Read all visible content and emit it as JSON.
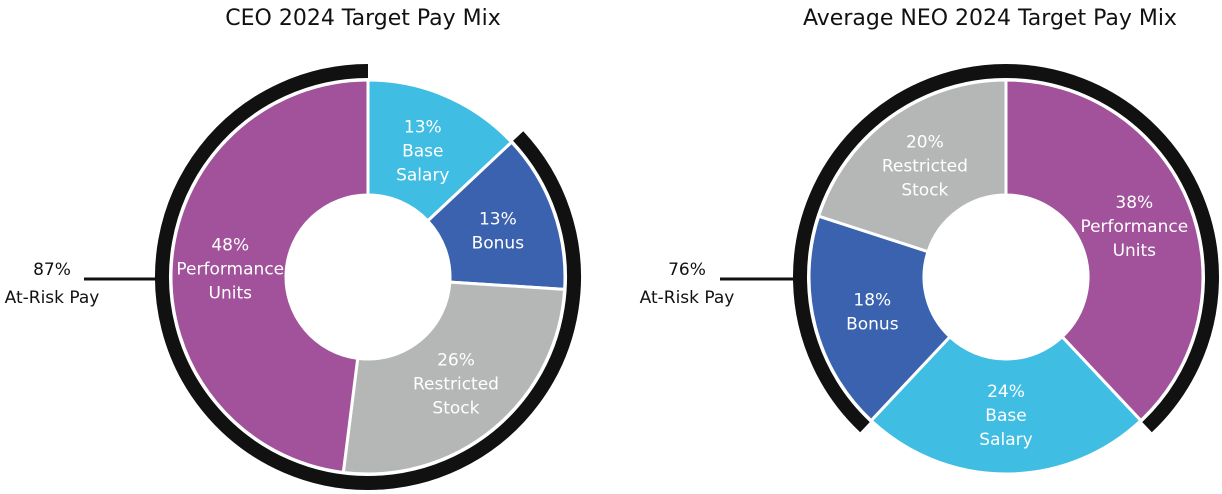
{
  "chart_data": [
    {
      "type": "donut",
      "title": "CEO 2024 Target Pay Mix",
      "slices": [
        {
          "name": "Base Salary",
          "value": 13,
          "label": [
            "13%",
            "Base",
            "Salary"
          ],
          "color": "#40BDE3",
          "at_risk": false
        },
        {
          "name": "Bonus",
          "value": 13,
          "label": [
            "13%",
            "Bonus"
          ],
          "color": "#3A62AE",
          "at_risk": true
        },
        {
          "name": "Restricted Stock",
          "value": 26,
          "label": [
            "26%",
            "Restricted",
            "Stock"
          ],
          "color": "#B5B6B6",
          "at_risk": true
        },
        {
          "name": "Performance Units",
          "value": 48,
          "label": [
            "48%",
            "Performance",
            "Units"
          ],
          "color": "#A1529A",
          "at_risk": true
        }
      ],
      "at_risk": {
        "value": "87%",
        "label": "At-Risk Pay"
      }
    },
    {
      "type": "donut",
      "title": "Average NEO 2024 Target Pay Mix",
      "slices": [
        {
          "name": "Performance Units",
          "value": 38,
          "label": [
            "38%",
            "Performance",
            "Units"
          ],
          "color": "#A1529A",
          "at_risk": true
        },
        {
          "name": "Base Salary",
          "value": 24,
          "label": [
            "24%",
            "Base",
            "Salary"
          ],
          "color": "#40BDE3",
          "at_risk": false
        },
        {
          "name": "Bonus",
          "value": 18,
          "label": [
            "18%",
            "Bonus"
          ],
          "color": "#3A62AE",
          "at_risk": true
        },
        {
          "name": "Restricted Stock",
          "value": 20,
          "label": [
            "20%",
            "Restricted",
            "Stock"
          ],
          "color": "#B5B6B6",
          "at_risk": true
        }
      ],
      "at_risk": {
        "value": "76%",
        "label": "At-Risk Pay"
      }
    }
  ],
  "colors": {
    "arc": "#111111",
    "separator": "#ffffff"
  }
}
